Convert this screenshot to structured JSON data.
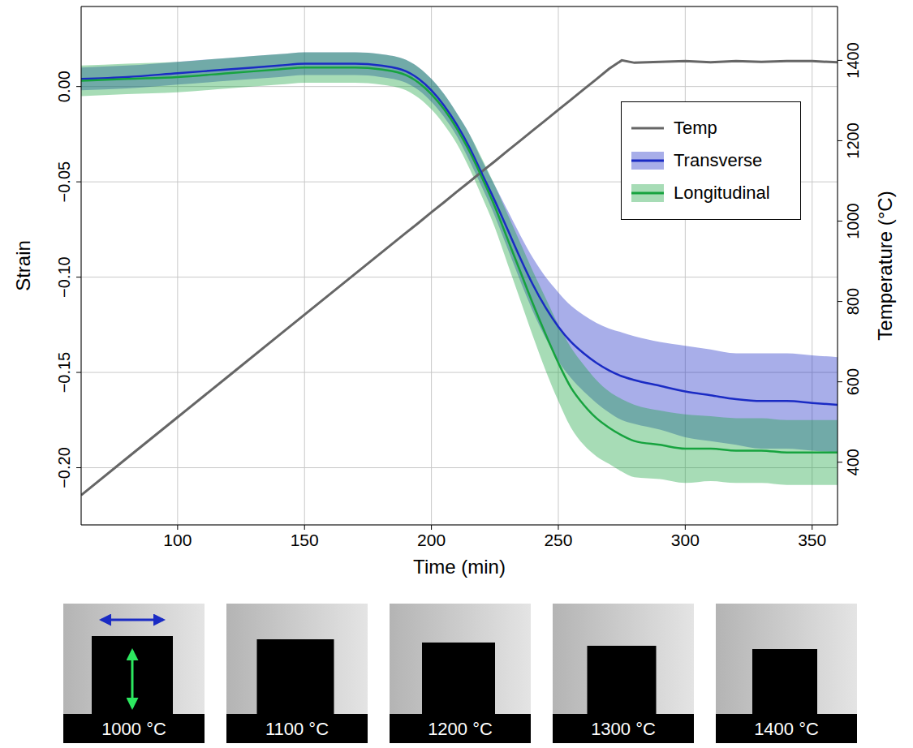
{
  "chart_data": {
    "type": "line",
    "xlabel": "Time (min)",
    "ylabel": "Strain",
    "y2label": "Temperature (°C)",
    "x": [
      62,
      80,
      100,
      120,
      140,
      150,
      160,
      170,
      180,
      190,
      195,
      200,
      205,
      210,
      215,
      220,
      225,
      230,
      235,
      240,
      245,
      250,
      255,
      260,
      265,
      270,
      275,
      280,
      290,
      300,
      310,
      320,
      330,
      340,
      350,
      360
    ],
    "series": [
      {
        "name": "Temp",
        "color": "#666666",
        "axis": "y2",
        "values": [
          318,
          410,
          512,
          614,
          716,
          767,
          818,
          869,
          920,
          971,
          996,
          1022,
          1047,
          1073,
          1098,
          1124,
          1149,
          1175,
          1200,
          1226,
          1251,
          1277,
          1302,
          1328,
          1353,
          1379,
          1400,
          1394,
          1396,
          1398,
          1395,
          1398,
          1396,
          1398,
          1398,
          1395
        ]
      },
      {
        "name": "Transverse",
        "color": "#1a2bc4",
        "values": [
          0.004,
          0.005,
          0.007,
          0.009,
          0.011,
          0.012,
          0.012,
          0.012,
          0.011,
          0.008,
          0.004,
          -0.002,
          -0.01,
          -0.02,
          -0.032,
          -0.046,
          -0.06,
          -0.075,
          -0.09,
          -0.104,
          -0.116,
          -0.126,
          -0.134,
          -0.14,
          -0.145,
          -0.149,
          -0.152,
          -0.154,
          -0.157,
          -0.16,
          -0.162,
          -0.164,
          -0.165,
          -0.165,
          -0.166,
          -0.167
        ],
        "upper": [
          0.01,
          0.011,
          0.013,
          0.015,
          0.017,
          0.018,
          0.018,
          0.018,
          0.017,
          0.014,
          0.01,
          0.004,
          -0.004,
          -0.014,
          -0.025,
          -0.039,
          -0.052,
          -0.065,
          -0.078,
          -0.09,
          -0.1,
          -0.108,
          -0.115,
          -0.12,
          -0.124,
          -0.127,
          -0.129,
          -0.131,
          -0.134,
          -0.136,
          -0.138,
          -0.14,
          -0.14,
          -0.14,
          -0.141,
          -0.142
        ],
        "lower": [
          -0.002,
          -0.001,
          0.001,
          0.003,
          0.005,
          0.006,
          0.006,
          0.006,
          0.005,
          0.002,
          -0.002,
          -0.008,
          -0.016,
          -0.026,
          -0.039,
          -0.053,
          -0.068,
          -0.085,
          -0.102,
          -0.118,
          -0.132,
          -0.144,
          -0.153,
          -0.16,
          -0.166,
          -0.171,
          -0.175,
          -0.177,
          -0.18,
          -0.184,
          -0.186,
          -0.188,
          -0.19,
          -0.19,
          -0.191,
          -0.192
        ]
      },
      {
        "name": "Longitudinal",
        "color": "#17a33f",
        "values": [
          0.003,
          0.004,
          0.005,
          0.007,
          0.009,
          0.01,
          0.01,
          0.01,
          0.009,
          0.006,
          0.002,
          -0.004,
          -0.012,
          -0.022,
          -0.034,
          -0.048,
          -0.063,
          -0.08,
          -0.097,
          -0.114,
          -0.13,
          -0.145,
          -0.158,
          -0.167,
          -0.174,
          -0.179,
          -0.183,
          -0.186,
          -0.188,
          -0.19,
          -0.19,
          -0.191,
          -0.191,
          -0.192,
          -0.192,
          -0.192
        ],
        "upper": [
          0.011,
          0.012,
          0.013,
          0.015,
          0.017,
          0.018,
          0.018,
          0.018,
          0.017,
          0.014,
          0.01,
          0.004,
          -0.004,
          -0.014,
          -0.025,
          -0.038,
          -0.052,
          -0.067,
          -0.082,
          -0.097,
          -0.111,
          -0.125,
          -0.137,
          -0.146,
          -0.154,
          -0.16,
          -0.164,
          -0.167,
          -0.17,
          -0.172,
          -0.173,
          -0.174,
          -0.174,
          -0.175,
          -0.175,
          -0.175
        ],
        "lower": [
          -0.005,
          -0.004,
          -0.003,
          -0.001,
          0.001,
          0.002,
          0.002,
          0.002,
          0.001,
          -0.002,
          -0.006,
          -0.012,
          -0.02,
          -0.03,
          -0.043,
          -0.058,
          -0.074,
          -0.093,
          -0.112,
          -0.131,
          -0.149,
          -0.165,
          -0.179,
          -0.188,
          -0.194,
          -0.198,
          -0.202,
          -0.205,
          -0.206,
          -0.208,
          -0.207,
          -0.208,
          -0.208,
          -0.209,
          -0.209,
          -0.209
        ]
      }
    ],
    "xlim": [
      62,
      360
    ],
    "xticks": [
      100,
      150,
      200,
      250,
      300,
      350
    ],
    "ylim": [
      -0.23,
      0.042
    ],
    "yticks": [
      {
        "value": -0.2,
        "label": "−0.20"
      },
      {
        "value": -0.15,
        "label": "−0.15"
      },
      {
        "value": -0.1,
        "label": "−0.10"
      },
      {
        "value": -0.05,
        "label": "−0.05"
      },
      {
        "value": 0,
        "label": "0.00"
      }
    ],
    "y2lim": [
      244,
      1534
    ],
    "y2ticks": [
      400,
      600,
      800,
      1000,
      1200,
      1400
    ],
    "grid": true,
    "legend": "right"
  },
  "photos": {
    "labels": [
      "1000 °C",
      "1100 °C",
      "1200 °C",
      "1300 °C",
      "1400 °C"
    ]
  }
}
